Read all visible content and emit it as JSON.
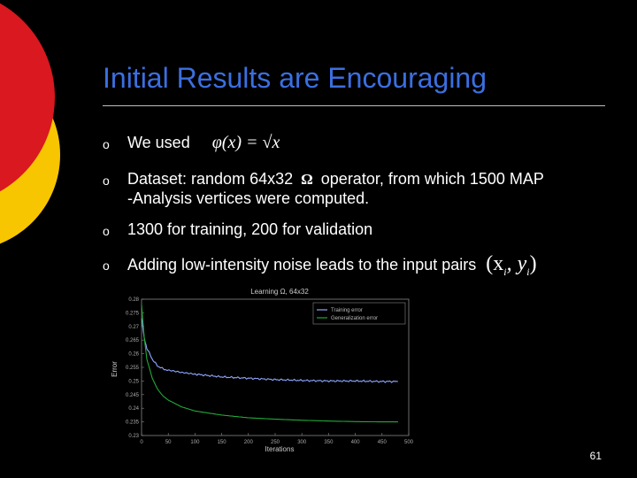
{
  "slide": {
    "title": "Initial Results are Encouraging",
    "page_number": "61",
    "bullet_marker": "o"
  },
  "bullets": [
    {
      "text": "We used",
      "math": "φ(x) = √x"
    },
    {
      "text": "Dataset: random 64x32",
      "omega": "Ω",
      "text2": "operator, from which 1500 MAP",
      "line2": "-Analysis vertices were computed."
    },
    {
      "text": "1300 for training, 200 for validation"
    },
    {
      "text": "Adding low-intensity noise leads to the input pairs",
      "math": "(x",
      "math_sub1": "i",
      "math_mid": ", y",
      "math_sub2": "i",
      "math_end": ")"
    }
  ],
  "colors": {
    "title": "#3b6fe0",
    "deco_red": "#d9181f",
    "deco_yellow": "#f7c600",
    "training": "#8fa6ff",
    "generalization": "#23a83a"
  },
  "chart_data": {
    "type": "line",
    "title": "Learning Ω, 64x32",
    "xlabel": "Iterations",
    "ylabel": "Error",
    "xlim": [
      0,
      500
    ],
    "ylim": [
      0.23,
      0.28
    ],
    "xticks": [
      "0",
      "50",
      "100",
      "150",
      "200",
      "250",
      "300",
      "350",
      "400",
      "450",
      "500"
    ],
    "yticks": [
      "0.23",
      "0.235",
      "0.24",
      "0.245",
      "0.25",
      "0.255",
      "0.26",
      "0.265",
      "0.27",
      "0.275",
      "0.28"
    ],
    "legend_position": "top-right",
    "series": [
      {
        "name": "Training error",
        "x": [
          0,
          5,
          10,
          20,
          30,
          40,
          50,
          75,
          100,
          150,
          200,
          250,
          300,
          350,
          400,
          450,
          480
        ],
        "y": [
          0.273,
          0.266,
          0.262,
          0.258,
          0.2555,
          0.2545,
          0.2538,
          0.253,
          0.2525,
          0.2515,
          0.251,
          0.2505,
          0.2502,
          0.25,
          0.25,
          0.2498,
          0.2498
        ]
      },
      {
        "name": "Generalization error",
        "x": [
          0,
          5,
          10,
          20,
          30,
          40,
          50,
          75,
          100,
          150,
          200,
          250,
          300,
          350,
          400,
          450,
          480
        ],
        "y": [
          0.278,
          0.266,
          0.258,
          0.251,
          0.247,
          0.2445,
          0.243,
          0.2405,
          0.239,
          0.2375,
          0.2365,
          0.236,
          0.2356,
          0.2353,
          0.2351,
          0.235,
          0.235
        ]
      }
    ]
  }
}
